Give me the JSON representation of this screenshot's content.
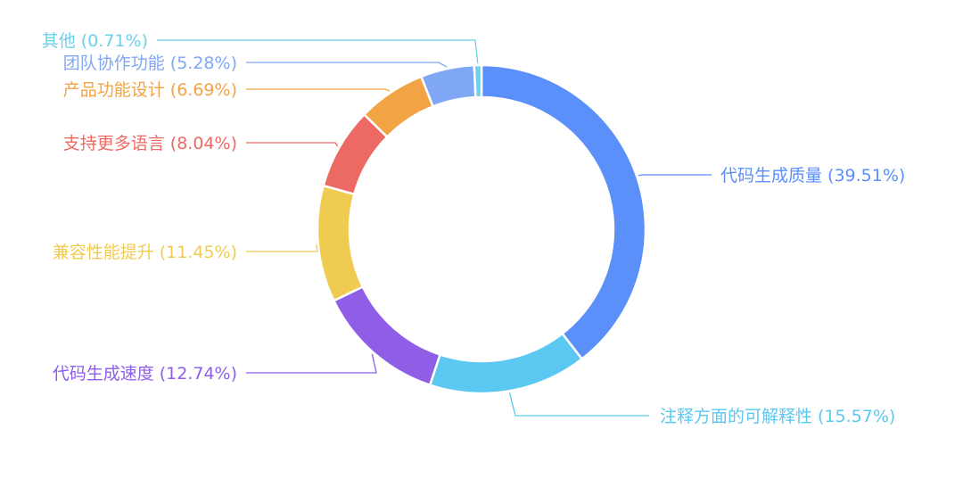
{
  "chart_data": {
    "type": "pie",
    "variant": "donut",
    "title": "",
    "slices": [
      {
        "name": "代码生成质量",
        "value": 39.51,
        "pct_label": "(39.51%)",
        "color": "#5b8ff9"
      },
      {
        "name": "注释方面的可解释性",
        "value": 15.57,
        "pct_label": "(15.57%)",
        "color": "#5ac8f0"
      },
      {
        "name": "代码生成速度",
        "value": 12.74,
        "pct_label": "(12.74%)",
        "color": "#8e5ee6"
      },
      {
        "name": "兼容性能提升",
        "value": 11.45,
        "pct_label": "(11.45%)",
        "color": "#f0cb52"
      },
      {
        "name": "支持更多语言",
        "value": 8.04,
        "pct_label": "(8.04%)",
        "color": "#ec6a63"
      },
      {
        "name": "产品功能设计",
        "value": 6.69,
        "pct_label": "(6.69%)",
        "color": "#f2a444"
      },
      {
        "name": "团队协作功能",
        "value": 5.28,
        "pct_label": "(5.28%)",
        "color": "#7fa7f5"
      },
      {
        "name": "其他",
        "value": 0.71,
        "pct_label": "(0.71%)",
        "color": "#6fd0ea"
      }
    ]
  }
}
